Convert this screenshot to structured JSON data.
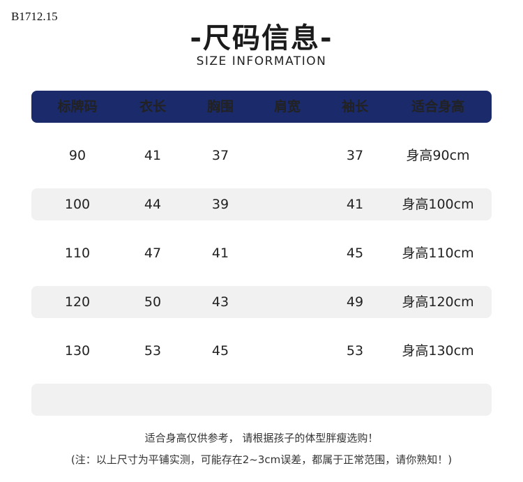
{
  "product_code": "B1712.15",
  "title": "-尺码信息-",
  "subtitle": "SIZE INFORMATION",
  "colors": {
    "header_bg": "#1a2a6a",
    "stripe_bg": "#f1f1f1"
  },
  "table": {
    "headers": [
      "标牌码",
      "衣长",
      "胸围",
      "肩宽",
      "袖长",
      "适合身高"
    ],
    "rows": [
      [
        "90",
        "41",
        "37",
        "",
        "37",
        "身高90cm"
      ],
      [
        "100",
        "44",
        "39",
        "",
        "41",
        "身高100cm"
      ],
      [
        "110",
        "47",
        "41",
        "",
        "45",
        "身高110cm"
      ],
      [
        "120",
        "50",
        "43",
        "",
        "49",
        "身高120cm"
      ],
      [
        "130",
        "53",
        "45",
        "",
        "53",
        "身高130cm"
      ],
      [
        "",
        "",
        "",
        "",
        "",
        ""
      ]
    ]
  },
  "notes": [
    "适合身高仅供参考， 请根据孩子的体型胖瘦选购！",
    "(注：以上尺寸为平铺实测，可能存在2~3cm误差，都属于正常范围，请你熟知！)"
  ]
}
